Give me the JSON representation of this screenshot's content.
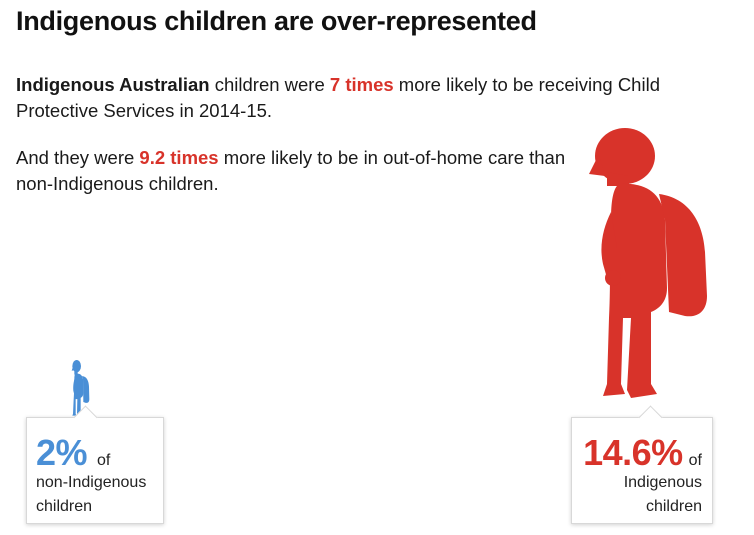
{
  "title": "Indigenous children are over-represented",
  "paragraph1": {
    "part1": "Indigenous Australian",
    "part2": " children were ",
    "part3": "7 times",
    "part4": " more likely to be receiving Child Protective Services in 2014-15."
  },
  "paragraph2": {
    "part1": "And they were ",
    "part2": "9.2 times",
    "part3": " more likely to be in out-of-home care than non-Indigenous children."
  },
  "left_callout": {
    "percent": "2%",
    "of": "of",
    "line2": "non-Indigenous",
    "line3": "children",
    "value": 2
  },
  "right_callout": {
    "percent": "14.6%",
    "of": "of",
    "line2": "Indigenous",
    "line3": "children",
    "value": 14.6
  },
  "colors": {
    "accent_red": "#d8332a",
    "accent_blue": "#4a8fd6",
    "text": "#111111"
  },
  "icons": {
    "small_figure": "child-with-backpack-icon",
    "large_figure": "child-with-backpack-icon"
  }
}
